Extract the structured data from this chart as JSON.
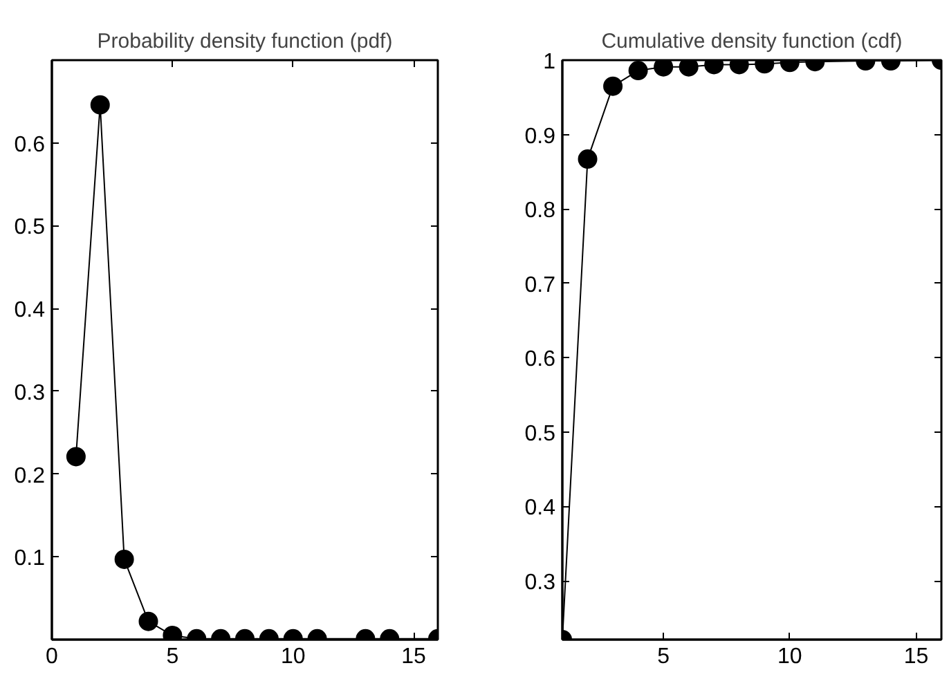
{
  "chart_data": [
    {
      "type": "line",
      "title": "Probability density function (pdf)",
      "x": [
        1,
        2,
        3,
        4,
        5,
        6,
        7,
        8,
        9,
        10,
        11,
        13,
        14,
        16
      ],
      "series": [
        {
          "color": "#000000",
          "values": [
            0.221,
            0.646,
            0.097,
            0.022,
            0.005,
            0.001,
            0.001,
            0.001,
            0.001,
            0.001,
            0.001,
            0.001,
            0.001,
            0.001
          ]
        }
      ],
      "xlim": [
        0,
        16
      ],
      "ylim": [
        0,
        0.7
      ],
      "xticks": [
        0,
        5,
        10,
        15
      ],
      "yticks": [
        0.1,
        0.2,
        0.3,
        0.4,
        0.5,
        0.6
      ],
      "grid": false,
      "marker": "circle",
      "line_style": "solid"
    },
    {
      "type": "line",
      "title": "Cumulative density function (cdf)",
      "x": [
        1,
        2,
        3,
        4,
        5,
        6,
        7,
        8,
        9,
        10,
        11,
        13,
        14,
        16
      ],
      "series": [
        {
          "color": "#000000",
          "values": [
            0.221,
            0.867,
            0.965,
            0.986,
            0.991,
            0.991,
            0.994,
            0.994,
            0.995,
            0.997,
            0.998,
            0.999,
            0.999,
            1.0
          ]
        }
      ],
      "xlim": [
        1,
        16
      ],
      "ylim": [
        0.221,
        1
      ],
      "xticks": [
        5,
        10,
        15
      ],
      "yticks": [
        0.3,
        0.4,
        0.5,
        0.6,
        0.7,
        0.8,
        0.9,
        1
      ],
      "grid": false,
      "marker": "circle",
      "line_style": "solid"
    }
  ]
}
